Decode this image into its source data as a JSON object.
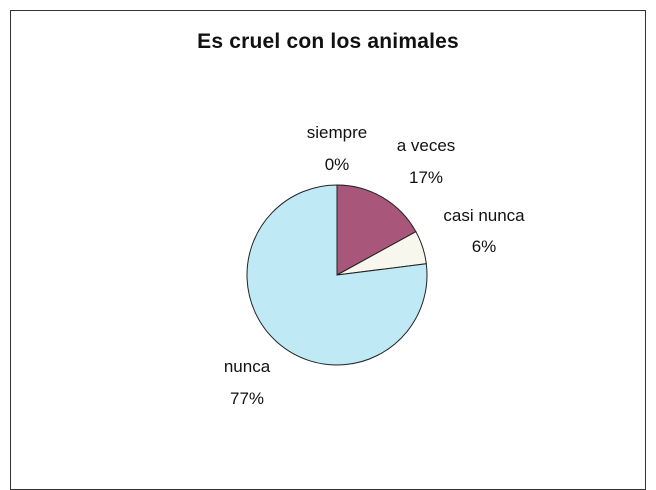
{
  "chart_data": {
    "type": "pie",
    "title": "Es cruel con los animales",
    "slices": [
      {
        "label": "siempre",
        "percent_label": "0%",
        "value": 0,
        "color": "#ffffff"
      },
      {
        "label": "a veces",
        "percent_label": "17%",
        "value": 17,
        "color": "#a8567a"
      },
      {
        "label": "casi nunca",
        "percent_label": "6%",
        "value": 6,
        "color": "#f7f7ee"
      },
      {
        "label": "nunca",
        "percent_label": "77%",
        "value": 77,
        "color": "#bfe9f5"
      }
    ],
    "start_angle": "12 o'clock",
    "direction": "clockwise",
    "legend": "none",
    "data_labels": "category name and percentage"
  }
}
